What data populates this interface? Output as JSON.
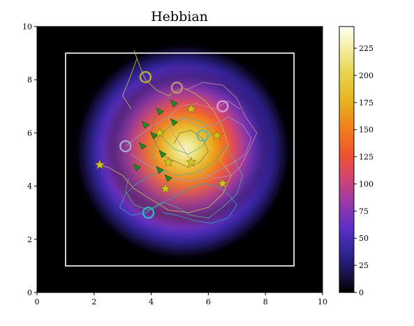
{
  "chart_data": {
    "type": "heatmap",
    "title": "Hebbian",
    "xlabel": "",
    "ylabel": "",
    "xlim": [
      0,
      10
    ],
    "ylim": [
      0,
      10
    ],
    "x_ticks": [
      0,
      2,
      4,
      6,
      8,
      10
    ],
    "y_ticks": [
      0,
      2,
      4,
      6,
      8,
      10
    ],
    "grid": false,
    "colormap": "CMRmap-like (black-blue-purple-red-orange-yellow-white)",
    "colorbar": {
      "min": 0,
      "max": 245,
      "ticks": [
        0,
        25,
        50,
        75,
        100,
        125,
        150,
        175,
        200,
        225
      ]
    },
    "heat_center": [
      5.1,
      5.3
    ],
    "peak_value": 245,
    "boundary_rect": {
      "x": [
        1,
        9
      ],
      "y": [
        1,
        9
      ],
      "color": "#ffffff"
    },
    "stars": [
      {
        "x": 2.2,
        "y": 4.8
      },
      {
        "x": 4.3,
        "y": 6.0
      },
      {
        "x": 5.4,
        "y": 6.9
      },
      {
        "x": 6.3,
        "y": 5.9
      },
      {
        "x": 4.6,
        "y": 4.9
      },
      {
        "x": 5.4,
        "y": 4.9
      },
      {
        "x": 4.5,
        "y": 3.9
      },
      {
        "x": 6.5,
        "y": 4.1
      }
    ],
    "triangles": [
      {
        "x": 4.3,
        "y": 6.8
      },
      {
        "x": 4.8,
        "y": 7.1
      },
      {
        "x": 3.8,
        "y": 6.3
      },
      {
        "x": 4.8,
        "y": 6.4
      },
      {
        "x": 4.1,
        "y": 5.9
      },
      {
        "x": 3.7,
        "y": 5.5
      },
      {
        "x": 4.4,
        "y": 5.2
      },
      {
        "x": 3.5,
        "y": 4.7
      },
      {
        "x": 4.3,
        "y": 4.6
      },
      {
        "x": 4.6,
        "y": 4.3
      }
    ],
    "circles": [
      {
        "x": 3.8,
        "y": 8.1,
        "color": "#b5b12a"
      },
      {
        "x": 4.9,
        "y": 7.7,
        "color": "#c98a7e"
      },
      {
        "x": 6.5,
        "y": 7.0,
        "color": "#d79ad6"
      },
      {
        "x": 3.1,
        "y": 5.5,
        "color": "#a8a8d2"
      },
      {
        "x": 5.8,
        "y": 5.9,
        "color": "#6fb89b"
      },
      {
        "x": 3.9,
        "y": 3.0,
        "color": "#2fb3c2"
      }
    ],
    "trajectories": [
      {
        "color": "#c8c44a",
        "points": [
          [
            3.3,
            6.9
          ],
          [
            3.0,
            7.4
          ],
          [
            3.3,
            8.2
          ],
          [
            3.5,
            8.8
          ],
          [
            3.4,
            9.1
          ],
          [
            3.6,
            8.5
          ],
          [
            3.8,
            8.0
          ],
          [
            4.2,
            7.6
          ],
          [
            4.6,
            7.4
          ],
          [
            5.1,
            7.7
          ],
          [
            5.5,
            7.5
          ],
          [
            5.9,
            7.2
          ],
          [
            6.2,
            6.8
          ],
          [
            6.5,
            6.2
          ],
          [
            6.7,
            5.5
          ],
          [
            6.4,
            5.0
          ],
          [
            6.8,
            4.4
          ],
          [
            6.5,
            3.7
          ],
          [
            6.0,
            3.2
          ],
          [
            5.3,
            3.0
          ],
          [
            4.6,
            3.1
          ],
          [
            4.0,
            3.5
          ],
          [
            3.4,
            3.9
          ],
          [
            3.0,
            4.4
          ],
          [
            2.5,
            4.7
          ],
          [
            2.2,
            4.8
          ]
        ]
      },
      {
        "color": "#d08aa6",
        "points": [
          [
            5.2,
            7.6
          ],
          [
            5.8,
            7.9
          ],
          [
            6.5,
            7.8
          ],
          [
            7.0,
            7.3
          ],
          [
            7.3,
            6.6
          ],
          [
            7.7,
            6.0
          ],
          [
            7.4,
            5.3
          ],
          [
            7.1,
            4.7
          ],
          [
            6.8,
            4.4
          ],
          [
            6.2,
            4.3
          ],
          [
            5.6,
            4.6
          ],
          [
            5.3,
            5.1
          ],
          [
            5.0,
            5.6
          ],
          [
            4.7,
            6.1
          ],
          [
            4.6,
            6.6
          ],
          [
            5.0,
            7.0
          ],
          [
            5.6,
            7.1
          ],
          [
            6.2,
            6.9
          ],
          [
            6.7,
            7.2
          ],
          [
            7.1,
            6.9
          ]
        ]
      },
      {
        "color": "#5fae8a",
        "points": [
          [
            4.4,
            5.8
          ],
          [
            4.8,
            5.4
          ],
          [
            5.3,
            5.2
          ],
          [
            5.8,
            5.5
          ],
          [
            6.1,
            6.0
          ],
          [
            5.8,
            6.4
          ],
          [
            5.2,
            6.6
          ],
          [
            4.7,
            6.3
          ],
          [
            4.3,
            5.9
          ],
          [
            4.0,
            5.3
          ],
          [
            4.2,
            4.7
          ],
          [
            4.9,
            4.4
          ],
          [
            5.6,
            4.5
          ],
          [
            6.2,
            4.9
          ],
          [
            6.6,
            5.5
          ],
          [
            6.9,
            5.0
          ],
          [
            7.2,
            4.4
          ],
          [
            7.0,
            3.7
          ],
          [
            6.5,
            3.2
          ],
          [
            6.0,
            2.8
          ],
          [
            5.4,
            2.9
          ],
          [
            4.9,
            3.2
          ],
          [
            4.4,
            3.4
          ],
          [
            3.9,
            3.1
          ],
          [
            3.4,
            3.3
          ],
          [
            3.1,
            3.8
          ],
          [
            3.2,
            4.3
          ]
        ]
      },
      {
        "color": "#2aa8b8",
        "points": [
          [
            4.5,
            4.6
          ],
          [
            4.0,
            4.4
          ],
          [
            3.5,
            4.1
          ],
          [
            3.1,
            3.7
          ],
          [
            2.9,
            3.2
          ],
          [
            3.3,
            2.9
          ],
          [
            3.8,
            3.0
          ],
          [
            4.3,
            3.3
          ],
          [
            4.8,
            3.6
          ],
          [
            5.3,
            3.9
          ],
          [
            5.8,
            4.1
          ],
          [
            6.3,
            4.0
          ],
          [
            6.7,
            3.7
          ],
          [
            7.0,
            3.3
          ],
          [
            6.7,
            2.8
          ],
          [
            6.1,
            2.6
          ],
          [
            5.5,
            2.7
          ],
          [
            4.9,
            2.9
          ],
          [
            4.4,
            3.0
          ]
        ]
      },
      {
        "color": "#9a9ad0",
        "points": [
          [
            3.1,
            5.5
          ],
          [
            3.6,
            5.9
          ],
          [
            4.1,
            6.3
          ],
          [
            4.6,
            6.6
          ],
          [
            5.2,
            6.5
          ],
          [
            5.7,
            6.2
          ],
          [
            6.2,
            6.3
          ],
          [
            6.7,
            6.6
          ],
          [
            7.2,
            6.3
          ],
          [
            7.5,
            5.8
          ],
          [
            7.3,
            5.2
          ],
          [
            6.9,
            4.9
          ],
          [
            6.4,
            4.6
          ],
          [
            5.9,
            4.3
          ],
          [
            5.3,
            4.2
          ],
          [
            4.7,
            4.3
          ],
          [
            4.2,
            4.6
          ],
          [
            3.7,
            4.9
          ],
          [
            3.3,
            5.2
          ]
        ]
      },
      {
        "color": "#8a7a3a",
        "points": [
          [
            4.9,
            7.7
          ],
          [
            4.6,
            7.3
          ],
          [
            4.3,
            6.9
          ],
          [
            4.1,
            6.5
          ],
          [
            4.0,
            6.0
          ],
          [
            4.2,
            5.5
          ],
          [
            4.5,
            5.1
          ],
          [
            4.9,
            4.9
          ],
          [
            5.3,
            4.7
          ],
          [
            5.7,
            4.9
          ],
          [
            6.0,
            5.3
          ],
          [
            5.8,
            5.8
          ],
          [
            5.4,
            6.1
          ],
          [
            5.0,
            6.0
          ],
          [
            4.8,
            5.6
          ]
        ]
      }
    ]
  }
}
